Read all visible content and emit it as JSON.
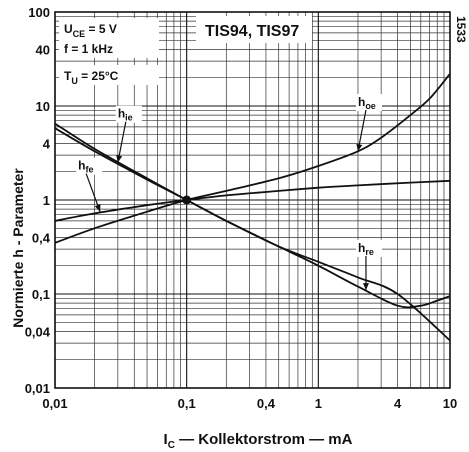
{
  "chart_data": {
    "type": "line",
    "xscale": "log",
    "yscale": "log",
    "xlim": [
      0.01,
      10
    ],
    "ylim": [
      0.01,
      100
    ],
    "xlabel": "I_C — Kollektorstrom — mA",
    "ylabel": "Normierte h - Parameter",
    "xlabel_parts": {
      "sym": "I",
      "sub": "C",
      "rest": " — Kollektorstrom — mA"
    },
    "x_ticks": [
      {
        "v": 0.01,
        "label": "0,01"
      },
      {
        "v": 0.1,
        "label": "0,1"
      },
      {
        "v": 0.4,
        "label": "0,4"
      },
      {
        "v": 1,
        "label": "1"
      },
      {
        "v": 4,
        "label": "4"
      },
      {
        "v": 10,
        "label": "10"
      }
    ],
    "y_ticks": [
      {
        "v": 100,
        "label": "100"
      },
      {
        "v": 40,
        "label": "40"
      },
      {
        "v": 10,
        "label": "10"
      },
      {
        "v": 4,
        "label": "4"
      },
      {
        "v": 1,
        "label": "1"
      },
      {
        "v": 0.4,
        "label": "0,4"
      },
      {
        "v": 0.1,
        "label": "0,1"
      },
      {
        "v": 0.04,
        "label": "0,04"
      },
      {
        "v": 0.01,
        "label": "0,01"
      }
    ],
    "conditions": [
      {
        "sym": "U",
        "sub": "CE",
        "text": " = 5 V"
      },
      {
        "sym": "f",
        "sub": "",
        "text": " = 1 kHz"
      },
      {
        "sym": "T",
        "sub": "U",
        "text": " = 25°C"
      }
    ],
    "device_label": "TIS94, TIS97",
    "figure_number": "1533",
    "series": [
      {
        "name": "h_oe",
        "sym": "h",
        "sub": "oe",
        "points": [
          [
            0.01,
            0.35
          ],
          [
            0.02,
            0.5
          ],
          [
            0.05,
            0.75
          ],
          [
            0.1,
            1.0
          ],
          [
            0.2,
            1.25
          ],
          [
            0.5,
            1.7
          ],
          [
            1,
            2.3
          ],
          [
            2,
            3.3
          ],
          [
            3,
            4.6
          ],
          [
            5,
            8
          ],
          [
            7,
            12
          ],
          [
            10,
            22
          ]
        ],
        "label_at": [
          2.0,
          10.0
        ],
        "arrow_at": [
          2.0,
          3.3
        ]
      },
      {
        "name": "h_ie",
        "sym": "h",
        "sub": "ie",
        "points": [
          [
            0.01,
            6.5
          ],
          [
            0.02,
            3.5
          ],
          [
            0.05,
            1.7
          ],
          [
            0.1,
            1.0
          ],
          [
            0.2,
            0.6
          ],
          [
            0.5,
            0.32
          ],
          [
            1,
            0.22
          ],
          [
            2,
            0.15
          ],
          [
            4,
            0.1
          ],
          [
            10,
            0.032
          ]
        ],
        "label_at": [
          0.03,
          7.5
        ],
        "arrow_at": [
          0.03,
          2.5
        ]
      },
      {
        "name": "h_re",
        "sym": "h",
        "sub": "re",
        "points": [
          [
            0.01,
            5.8
          ],
          [
            0.02,
            3.3
          ],
          [
            0.05,
            1.65
          ],
          [
            0.1,
            1.0
          ],
          [
            0.2,
            0.6
          ],
          [
            0.5,
            0.32
          ],
          [
            1,
            0.2
          ],
          [
            2,
            0.12
          ],
          [
            4,
            0.075
          ],
          [
            6,
            0.075
          ],
          [
            8,
            0.085
          ],
          [
            10,
            0.095
          ]
        ],
        "label_at": [
          2.0,
          0.28
        ],
        "arrow_at": [
          2.3,
          0.11
        ]
      },
      {
        "name": "h_fe",
        "sym": "h",
        "sub": "fe",
        "points": [
          [
            0.01,
            0.6
          ],
          [
            0.02,
            0.72
          ],
          [
            0.05,
            0.88
          ],
          [
            0.1,
            1.0
          ],
          [
            0.2,
            1.12
          ],
          [
            0.5,
            1.25
          ],
          [
            1,
            1.35
          ],
          [
            2,
            1.43
          ],
          [
            5,
            1.53
          ],
          [
            10,
            1.6
          ]
        ],
        "label_at": [
          0.015,
          2.1
        ],
        "arrow_at": [
          0.022,
          0.75
        ]
      }
    ],
    "grid": true,
    "marker": {
      "x": 0.1,
      "y": 1.0
    }
  }
}
